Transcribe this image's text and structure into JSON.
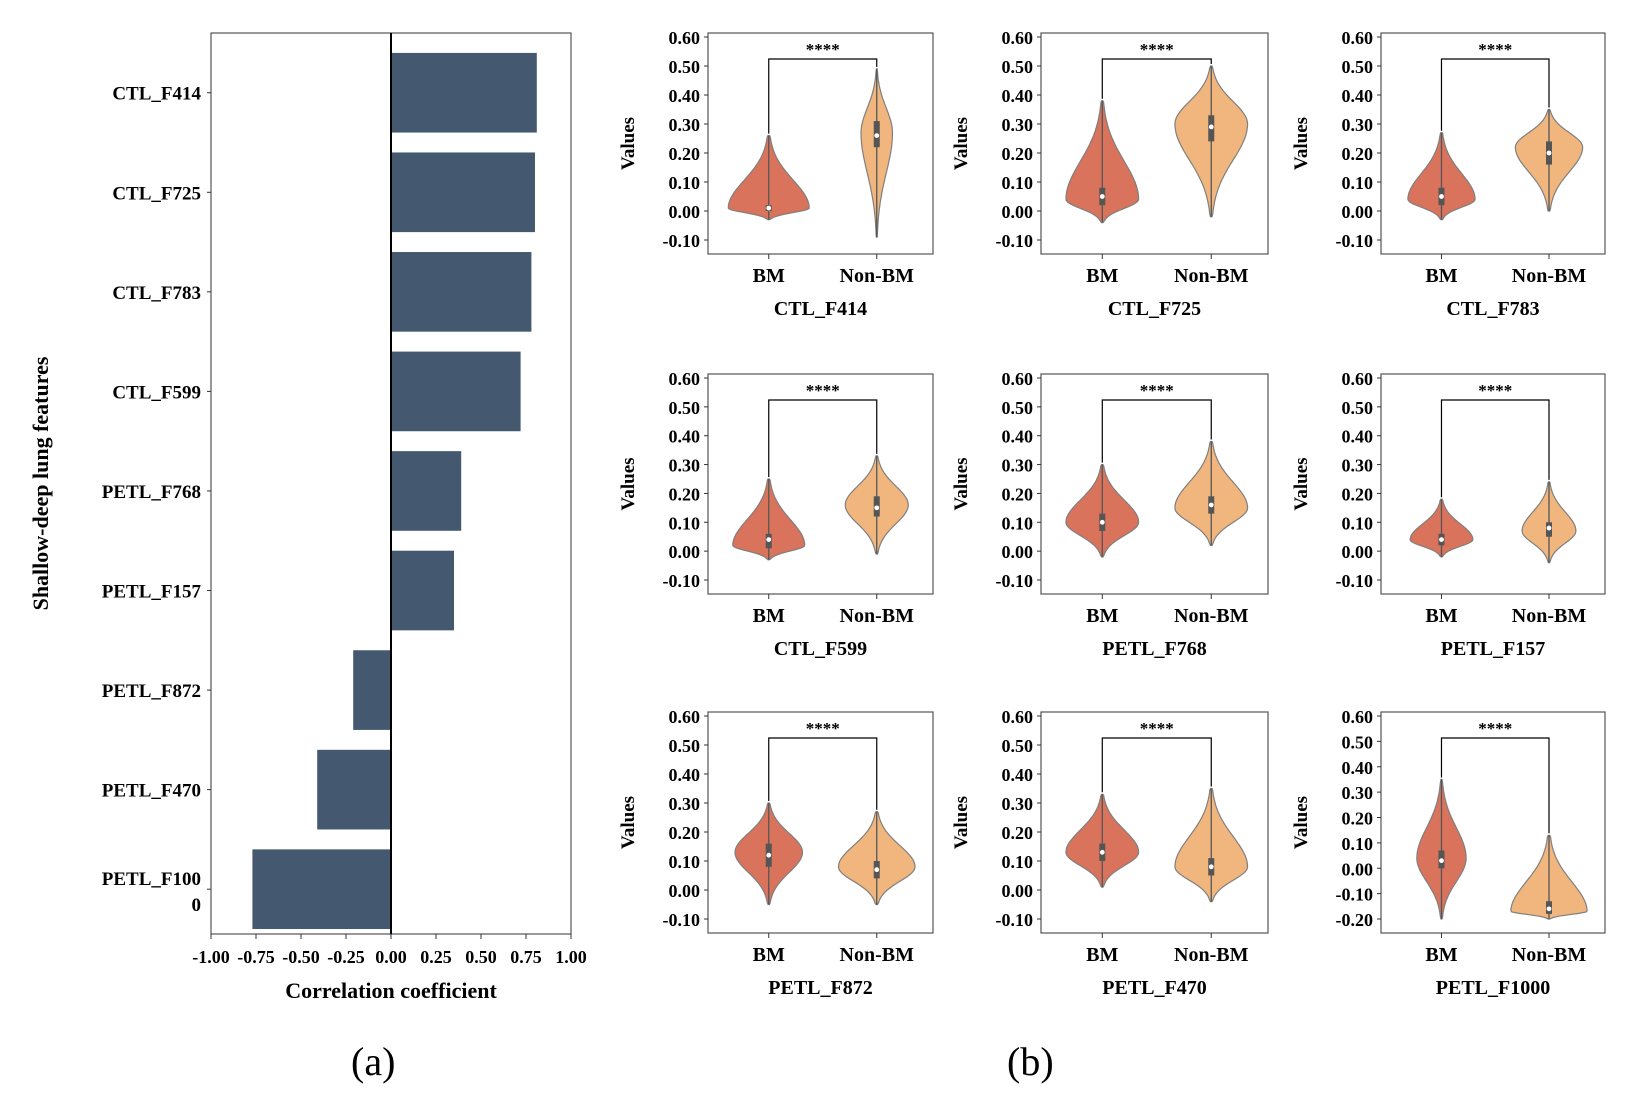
{
  "figure": {
    "panel_a_label": "(a)",
    "panel_b_label": "(b)"
  },
  "colors": {
    "bar": "#44596f",
    "bm": "#d9735b",
    "nonbm": "#f0b67e",
    "violin_edge": "#7f7f7f",
    "box": "#555555"
  },
  "chart_data": [
    {
      "type": "bar",
      "orientation": "horizontal",
      "title": "",
      "xlabel": "Correlation coefficient",
      "ylabel": "Shallow-deep lung features",
      "categories": [
        "CTL_F414",
        "CTL_F725",
        "CTL_F783",
        "CTL_F599",
        "PETL_F768",
        "PETL_F157",
        "PETL_F872",
        "PETL_F470",
        "PETL_F1000"
      ],
      "category_labels": [
        [
          "CTL_F414"
        ],
        [
          "CTL_F725"
        ],
        [
          "CTL_F783"
        ],
        [
          "CTL_F599"
        ],
        [
          "PETL_F768"
        ],
        [
          "PETL_F157"
        ],
        [
          "PETL_F872"
        ],
        [
          "PETL_F470"
        ],
        [
          "PETL_F100",
          "0"
        ]
      ],
      "values": [
        0.81,
        0.8,
        0.78,
        0.72,
        0.39,
        0.35,
        -0.21,
        -0.41,
        -0.77
      ],
      "xlim": [
        -1.0,
        1.0
      ],
      "xticks": [
        "-1.00",
        "-0.75",
        "-0.50",
        "-0.25",
        "0.00",
        "0.25",
        "0.50",
        "0.75",
        "1.00"
      ]
    },
    {
      "type": "violin",
      "panels": [
        {
          "xlabel": "CTL_F414",
          "ylabel": "Values",
          "categories": [
            "BM",
            "Non-BM"
          ],
          "significance": "****",
          "yticks": [
            "0.60",
            "0.50",
            "0.40",
            "0.30",
            "0.20",
            "0.10",
            "0.00",
            "-0.10"
          ],
          "ylim": [
            -0.1,
            0.6
          ],
          "series": [
            {
              "name": "BM",
              "min": -0.03,
              "max": 0.26,
              "q1": 0.0,
              "median": 0.01,
              "q3": 0.02,
              "mode": 0.01,
              "width": 0.9
            },
            {
              "name": "Non-BM",
              "min": -0.09,
              "max": 0.49,
              "q1": 0.22,
              "median": 0.26,
              "q3": 0.31,
              "mode": 0.27,
              "width": 0.35
            }
          ]
        },
        {
          "xlabel": "CTL_F725",
          "ylabel": "Values",
          "categories": [
            "BM",
            "Non-BM"
          ],
          "significance": "****",
          "yticks": [
            "0.60",
            "0.50",
            "0.40",
            "0.30",
            "0.20",
            "0.10",
            "0.00",
            "-0.10"
          ],
          "ylim": [
            -0.1,
            0.6
          ],
          "series": [
            {
              "name": "BM",
              "min": -0.04,
              "max": 0.38,
              "q1": 0.02,
              "median": 0.05,
              "q3": 0.08,
              "mode": 0.04,
              "width": 0.8
            },
            {
              "name": "Non-BM",
              "min": -0.02,
              "max": 0.5,
              "q1": 0.24,
              "median": 0.29,
              "q3": 0.33,
              "mode": 0.3,
              "width": 0.8
            }
          ]
        },
        {
          "xlabel": "CTL_F783",
          "ylabel": "Values",
          "categories": [
            "BM",
            "Non-BM"
          ],
          "significance": "****",
          "yticks": [
            "0.60",
            "0.50",
            "0.40",
            "0.30",
            "0.20",
            "0.10",
            "0.00",
            "-0.10"
          ],
          "ylim": [
            -0.1,
            0.6
          ],
          "series": [
            {
              "name": "BM",
              "min": -0.03,
              "max": 0.27,
              "q1": 0.02,
              "median": 0.05,
              "q3": 0.08,
              "mode": 0.04,
              "width": 0.75
            },
            {
              "name": "Non-BM",
              "min": 0.0,
              "max": 0.35,
              "q1": 0.16,
              "median": 0.2,
              "q3": 0.24,
              "mode": 0.22,
              "width": 0.75
            }
          ]
        },
        {
          "xlabel": "CTL_F599",
          "ylabel": "Values",
          "categories": [
            "BM",
            "Non-BM"
          ],
          "significance": "****",
          "yticks": [
            "0.60",
            "0.50",
            "0.40",
            "0.30",
            "0.20",
            "0.10",
            "0.00",
            "-0.10"
          ],
          "ylim": [
            -0.1,
            0.6
          ],
          "series": [
            {
              "name": "BM",
              "min": -0.03,
              "max": 0.25,
              "q1": 0.01,
              "median": 0.04,
              "q3": 0.06,
              "mode": 0.02,
              "width": 0.8
            },
            {
              "name": "Non-BM",
              "min": -0.01,
              "max": 0.33,
              "q1": 0.12,
              "median": 0.15,
              "q3": 0.19,
              "mode": 0.16,
              "width": 0.7
            }
          ]
        },
        {
          "xlabel": "PETL_F768",
          "ylabel": "Values",
          "categories": [
            "BM",
            "Non-BM"
          ],
          "significance": "****",
          "yticks": [
            "0.60",
            "0.50",
            "0.40",
            "0.30",
            "0.20",
            "0.10",
            "0.00",
            "-0.10"
          ],
          "ylim": [
            -0.1,
            0.6
          ],
          "series": [
            {
              "name": "BM",
              "min": -0.02,
              "max": 0.3,
              "q1": 0.07,
              "median": 0.1,
              "q3": 0.13,
              "mode": 0.1,
              "width": 0.8
            },
            {
              "name": "Non-BM",
              "min": 0.02,
              "max": 0.38,
              "q1": 0.13,
              "median": 0.16,
              "q3": 0.19,
              "mode": 0.15,
              "width": 0.8
            }
          ]
        },
        {
          "xlabel": "PETL_F157",
          "ylabel": "Values",
          "categories": [
            "BM",
            "Non-BM"
          ],
          "significance": "****",
          "yticks": [
            "0.60",
            "0.50",
            "0.40",
            "0.30",
            "0.20",
            "0.10",
            "0.00",
            "-0.10"
          ],
          "ylim": [
            -0.1,
            0.6
          ],
          "series": [
            {
              "name": "BM",
              "min": -0.02,
              "max": 0.18,
              "q1": 0.02,
              "median": 0.04,
              "q3": 0.06,
              "mode": 0.04,
              "width": 0.7
            },
            {
              "name": "Non-BM",
              "min": -0.04,
              "max": 0.24,
              "q1": 0.05,
              "median": 0.08,
              "q3": 0.1,
              "mode": 0.07,
              "width": 0.6
            }
          ]
        },
        {
          "xlabel": "PETL_F872",
          "ylabel": "Values",
          "categories": [
            "BM",
            "Non-BM"
          ],
          "significance": "****",
          "yticks": [
            "0.60",
            "0.50",
            "0.40",
            "0.30",
            "0.20",
            "0.10",
            "0.00",
            "-0.10"
          ],
          "ylim": [
            -0.1,
            0.6
          ],
          "series": [
            {
              "name": "BM",
              "min": -0.05,
              "max": 0.3,
              "q1": 0.08,
              "median": 0.12,
              "q3": 0.16,
              "mode": 0.13,
              "width": 0.75
            },
            {
              "name": "Non-BM",
              "min": -0.05,
              "max": 0.27,
              "q1": 0.04,
              "median": 0.07,
              "q3": 0.1,
              "mode": 0.08,
              "width": 0.85
            }
          ]
        },
        {
          "xlabel": "PETL_F470",
          "ylabel": "Values",
          "categories": [
            "BM",
            "Non-BM"
          ],
          "significance": "****",
          "yticks": [
            "0.60",
            "0.50",
            "0.40",
            "0.30",
            "0.20",
            "0.10",
            "0.00",
            "-0.10"
          ],
          "ylim": [
            -0.1,
            0.6
          ],
          "series": [
            {
              "name": "BM",
              "min": 0.01,
              "max": 0.33,
              "q1": 0.1,
              "median": 0.13,
              "q3": 0.16,
              "mode": 0.13,
              "width": 0.8
            },
            {
              "name": "Non-BM",
              "min": -0.04,
              "max": 0.35,
              "q1": 0.05,
              "median": 0.08,
              "q3": 0.11,
              "mode": 0.08,
              "width": 0.8
            }
          ]
        },
        {
          "xlabel": "PETL_F1000",
          "ylabel": "Values",
          "categories": [
            "BM",
            "Non-BM"
          ],
          "significance": "****",
          "yticks": [
            "0.60",
            "0.50",
            "0.40",
            "0.30",
            "0.20",
            "0.10",
            "0.00",
            "-0.10",
            "-0.20"
          ],
          "ylim": [
            -0.2,
            0.6
          ],
          "series": [
            {
              "name": "BM",
              "min": -0.2,
              "max": 0.35,
              "q1": 0.0,
              "median": 0.03,
              "q3": 0.07,
              "mode": 0.04,
              "width": 0.55
            },
            {
              "name": "Non-BM",
              "min": -0.2,
              "max": 0.13,
              "q1": -0.18,
              "median": -0.16,
              "q3": -0.13,
              "mode": -0.17,
              "width": 0.85
            }
          ]
        }
      ]
    }
  ]
}
